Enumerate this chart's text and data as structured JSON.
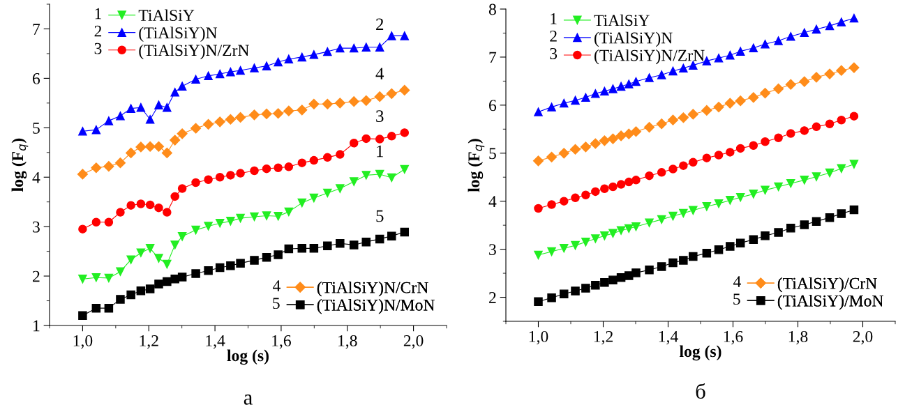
{
  "chart_data": [
    {
      "type": "line",
      "title": "а",
      "xlabel": "log (s)",
      "ylabel": "log (F$_{q}$)",
      "x": [
        1.0,
        1.041,
        1.079,
        1.114,
        1.146,
        1.176,
        1.204,
        1.23,
        1.255,
        1.279,
        1.301,
        1.342,
        1.38,
        1.415,
        1.447,
        1.477,
        1.519,
        1.556,
        1.591,
        1.623,
        1.663,
        1.699,
        1.74,
        1.778,
        1.82,
        1.857,
        1.898,
        1.934,
        1.973
      ],
      "series": [
        {
          "name": "TiAlSiY",
          "color": "#22ee22",
          "marker": "triangle_down",
          "values": [
            1.94,
            1.97,
            1.96,
            2.09,
            2.33,
            2.47,
            2.56,
            2.36,
            2.24,
            2.63,
            2.8,
            2.93,
            3.01,
            3.07,
            3.11,
            3.17,
            3.2,
            3.22,
            3.21,
            3.3,
            3.48,
            3.58,
            3.68,
            3.77,
            3.91,
            4.04,
            4.06,
            3.99,
            4.16
          ]
        },
        {
          "name": "(TiAlSiY)N",
          "color": "#0000ff",
          "marker": "triangle",
          "values": [
            4.93,
            4.96,
            5.14,
            5.24,
            5.39,
            5.41,
            5.17,
            5.46,
            5.41,
            5.72,
            5.84,
            5.98,
            6.05,
            6.09,
            6.13,
            6.16,
            6.21,
            6.25,
            6.33,
            6.39,
            6.43,
            6.48,
            6.54,
            6.61,
            6.61,
            6.63,
            6.63,
            6.86,
            6.86
          ]
        },
        {
          "name": "(TiAlSiY)N/ZrN",
          "color": "#ff0000",
          "marker": "circle",
          "values": [
            2.95,
            3.09,
            3.09,
            3.29,
            3.43,
            3.46,
            3.44,
            3.38,
            3.29,
            3.61,
            3.77,
            3.89,
            3.95,
            4.0,
            4.04,
            4.08,
            4.13,
            4.17,
            4.19,
            4.21,
            4.29,
            4.34,
            4.4,
            4.46,
            4.69,
            4.78,
            4.77,
            4.83,
            4.9
          ]
        },
        {
          "name": "(TiAlSiY)N/CrN",
          "color": "#ff8c1a",
          "marker": "diamond",
          "values": [
            4.06,
            4.19,
            4.22,
            4.29,
            4.49,
            4.61,
            4.62,
            4.62,
            4.49,
            4.75,
            4.88,
            4.99,
            5.07,
            5.12,
            5.17,
            5.21,
            5.26,
            5.28,
            5.29,
            5.34,
            5.36,
            5.48,
            5.48,
            5.5,
            5.53,
            5.55,
            5.63,
            5.69,
            5.76
          ]
        },
        {
          "name": "(TiAlSiY)N/MoN",
          "color": "#000000",
          "marker": "square",
          "values": [
            1.2,
            1.35,
            1.35,
            1.53,
            1.62,
            1.7,
            1.74,
            1.84,
            1.89,
            1.94,
            1.98,
            2.05,
            2.11,
            2.17,
            2.21,
            2.26,
            2.32,
            2.38,
            2.43,
            2.55,
            2.56,
            2.56,
            2.61,
            2.66,
            2.63,
            2.69,
            2.75,
            2.81,
            2.89
          ]
        }
      ],
      "xlim": [
        0.9,
        2.1
      ],
      "xticks": [
        {
          "value": 1.0,
          "label": "1,0"
        },
        {
          "value": 1.2,
          "label": "1,2"
        },
        {
          "value": 1.4,
          "label": "1,4"
        },
        {
          "value": 1.6,
          "label": "1,6"
        },
        {
          "value": 1.8,
          "label": "1,8"
        },
        {
          "value": 2.0,
          "label": "2,0"
        }
      ],
      "ylim": [
        1,
        7.5
      ],
      "yticks": [
        1,
        2,
        3,
        4,
        5,
        6,
        7
      ],
      "legend": [
        "top left",
        "bottom right"
      ],
      "grid": false,
      "annotations": [
        "1",
        "2",
        "3",
        "4",
        "5",
        "1",
        "2",
        "3",
        "4",
        "5"
      ]
    },
    {
      "type": "line",
      "title": "б",
      "xlabel": "log (s)",
      "ylabel": "log (F$_{q}$)",
      "x": [
        1.0,
        1.041,
        1.079,
        1.114,
        1.146,
        1.176,
        1.204,
        1.23,
        1.255,
        1.279,
        1.301,
        1.342,
        1.38,
        1.415,
        1.447,
        1.477,
        1.519,
        1.556,
        1.591,
        1.623,
        1.663,
        1.699,
        1.74,
        1.778,
        1.82,
        1.857,
        1.898,
        1.934,
        1.973
      ],
      "series": [
        {
          "name": "TiAlSiY",
          "color": "#22ee22",
          "marker": "triangle_down",
          "values": [
            2.88,
            2.95,
            3.02,
            3.08,
            3.15,
            3.22,
            3.28,
            3.33,
            3.39,
            3.43,
            3.47,
            3.55,
            3.62,
            3.69,
            3.75,
            3.81,
            3.89,
            3.95,
            4.02,
            4.08,
            4.15,
            4.23,
            4.3,
            4.37,
            4.44,
            4.51,
            4.59,
            4.68,
            4.77
          ]
        },
        {
          "name": "(TiAlSiY)N",
          "color": "#0000ff",
          "marker": "triangle",
          "values": [
            5.86,
            5.96,
            6.04,
            6.1,
            6.16,
            6.24,
            6.29,
            6.34,
            6.39,
            6.44,
            6.49,
            6.57,
            6.63,
            6.71,
            6.77,
            6.83,
            6.92,
            6.98,
            7.04,
            7.12,
            7.19,
            7.27,
            7.34,
            7.43,
            7.51,
            7.58,
            7.65,
            7.73,
            7.81
          ]
        },
        {
          "name": "(TiAlSiY)N/ZrN",
          "color": "#ff0000",
          "marker": "circle",
          "values": [
            3.85,
            3.93,
            4.0,
            4.07,
            4.13,
            4.2,
            4.26,
            4.3,
            4.35,
            4.4,
            4.44,
            4.53,
            4.6,
            4.67,
            4.74,
            4.81,
            4.9,
            4.96,
            5.02,
            5.1,
            5.16,
            5.24,
            5.32,
            5.41,
            5.47,
            5.55,
            5.61,
            5.69,
            5.77
          ]
        },
        {
          "name": "(TiAlSiY)/CrN",
          "color": "#ff8c1a",
          "marker": "diamond",
          "values": [
            4.84,
            4.92,
            5.0,
            5.08,
            5.13,
            5.2,
            5.26,
            5.3,
            5.36,
            5.4,
            5.45,
            5.54,
            5.61,
            5.69,
            5.74,
            5.81,
            5.89,
            5.96,
            6.04,
            6.09,
            6.16,
            6.25,
            6.34,
            6.43,
            6.49,
            6.58,
            6.65,
            6.72,
            6.78
          ]
        },
        {
          "name": "(TiAlSiY)/MoN",
          "color": "#000000",
          "marker": "square",
          "values": [
            1.91,
            1.99,
            2.07,
            2.13,
            2.19,
            2.25,
            2.31,
            2.36,
            2.41,
            2.45,
            2.51,
            2.57,
            2.64,
            2.72,
            2.77,
            2.85,
            2.92,
            2.99,
            3.06,
            3.13,
            3.2,
            3.28,
            3.35,
            3.44,
            3.51,
            3.58,
            3.66,
            3.74,
            3.82
          ]
        }
      ],
      "xlim": [
        0.9,
        2.1
      ],
      "xticks": [
        {
          "value": 1.0,
          "label": "1,0"
        },
        {
          "value": 1.2,
          "label": "1,2"
        },
        {
          "value": 1.4,
          "label": "1,4"
        },
        {
          "value": 1.6,
          "label": "1,6"
        },
        {
          "value": 1.8,
          "label": "1,8"
        },
        {
          "value": 2.0,
          "label": "2,0"
        }
      ],
      "ylim": [
        1.5,
        8
      ],
      "yticks": [
        2,
        3,
        4,
        5,
        6,
        7,
        8
      ],
      "legend": [
        "top left",
        "bottom right"
      ],
      "grid": false,
      "annotations": [
        "1",
        "2",
        "3",
        "4",
        "5"
      ]
    }
  ]
}
